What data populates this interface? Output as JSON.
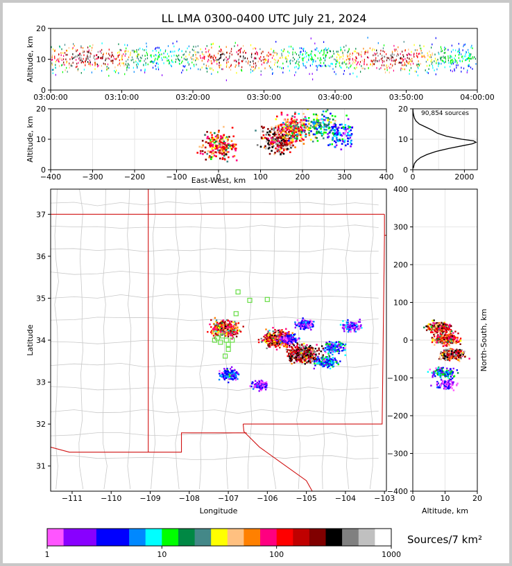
{
  "chart_data": [
    {
      "panel": "time-altitude",
      "type": "scatter",
      "title": "LL LMA 0300-0400 UTC July 21, 2024",
      "ylabel": "Altitude, km",
      "xlim": [
        "03:00:00",
        "04:00:00"
      ],
      "ylim": [
        0,
        20
      ],
      "x_ticks": [
        "03:00:00",
        "03:10:00",
        "03:20:00",
        "03:30:00",
        "03:40:00",
        "03:50:00",
        "04:00:00"
      ],
      "y_ticks": [
        "0",
        "10",
        "20"
      ]
    },
    {
      "panel": "east-west-altitude",
      "type": "heatmap",
      "xlabel": "East-West, km",
      "ylabel": "Altitude, km",
      "xlim": [
        -400,
        400
      ],
      "ylim": [
        0,
        20
      ],
      "x_ticks": [
        "−400",
        "−300",
        "−200",
        "−100",
        "0",
        "100",
        "200",
        "300",
        "400"
      ],
      "y_ticks": [
        "0",
        "10",
        "20"
      ],
      "clusters_xz": [
        {
          "x": 0,
          "z": 8,
          "weight": 0.85
        },
        {
          "x": 145,
          "z": 10,
          "weight": 1.0
        },
        {
          "x": 180,
          "z": 14,
          "weight": 0.8
        },
        {
          "x": 240,
          "z": 15,
          "weight": 0.55
        },
        {
          "x": 290,
          "z": 12,
          "weight": 0.4
        }
      ]
    },
    {
      "panel": "altitude-histogram",
      "type": "line",
      "annotation": "90,854 sources",
      "xlim": [
        0,
        2500
      ],
      "ylim": [
        0,
        20
      ],
      "x_ticks": [
        "0",
        "2000"
      ],
      "y_ticks": [
        "0",
        "10",
        "20"
      ],
      "profile": [
        {
          "z": 0.5,
          "n": 20
        },
        {
          "z": 2,
          "n": 60
        },
        {
          "z": 3,
          "n": 150
        },
        {
          "z": 4,
          "n": 300
        },
        {
          "z": 5,
          "n": 550
        },
        {
          "z": 6,
          "n": 900
        },
        {
          "z": 7,
          "n": 1400
        },
        {
          "z": 8,
          "n": 2000
        },
        {
          "z": 8.5,
          "n": 2300
        },
        {
          "z": 9,
          "n": 2450
        },
        {
          "z": 9.5,
          "n": 2350
        },
        {
          "z": 10,
          "n": 1900
        },
        {
          "z": 11,
          "n": 1300
        },
        {
          "z": 12,
          "n": 950
        },
        {
          "z": 13,
          "n": 750
        },
        {
          "z": 14,
          "n": 500
        },
        {
          "z": 15,
          "n": 250
        },
        {
          "z": 16,
          "n": 120
        },
        {
          "z": 17,
          "n": 60
        },
        {
          "z": 18,
          "n": 30
        },
        {
          "z": 19,
          "n": 10
        },
        {
          "z": 20,
          "n": 2
        }
      ]
    },
    {
      "panel": "plan-map",
      "type": "heatmap",
      "xlabel": "Longitude",
      "ylabel": "Latitude",
      "xlim": [
        -111.55,
        -102.95
      ],
      "ylim": [
        30.4,
        37.6
      ],
      "x_ticks": [
        "−111",
        "−110",
        "−109",
        "−108",
        "−107",
        "−106",
        "−105",
        "−104",
        "−103"
      ],
      "y_ticks": [
        "31",
        "32",
        "33",
        "34",
        "35",
        "36",
        "37"
      ],
      "clusters": [
        {
          "lon": -107.1,
          "lat": 34.3,
          "weight": 0.85
        },
        {
          "lon": -105.75,
          "lat": 34.05,
          "weight": 0.9
        },
        {
          "lon": -105.1,
          "lat": 33.7,
          "weight": 1.0
        },
        {
          "lon": -104.5,
          "lat": 33.5,
          "weight": 0.45
        },
        {
          "lon": -107.0,
          "lat": 33.2,
          "weight": 0.35
        },
        {
          "lon": -106.2,
          "lat": 32.95,
          "weight": 0.25
        },
        {
          "lon": -104.3,
          "lat": 33.85,
          "weight": 0.4
        },
        {
          "lon": -103.85,
          "lat": 34.35,
          "weight": 0.3
        },
        {
          "lon": -105.05,
          "lat": 34.4,
          "weight": 0.3
        },
        {
          "lon": -105.45,
          "lat": 34.05,
          "weight": 0.3
        }
      ],
      "stations": [
        {
          "lon": -106.75,
          "lat": 35.15
        },
        {
          "lon": -106.45,
          "lat": 34.95
        },
        {
          "lon": -106.0,
          "lat": 34.97
        },
        {
          "lon": -106.8,
          "lat": 34.63
        },
        {
          "lon": -107.35,
          "lat": 34.0
        },
        {
          "lon": -107.2,
          "lat": 33.95
        },
        {
          "lon": -107.05,
          "lat": 34.0
        },
        {
          "lon": -106.9,
          "lat": 34.0
        },
        {
          "lon": -107.15,
          "lat": 34.1
        },
        {
          "lon": -107.0,
          "lat": 33.9
        },
        {
          "lon": -107.0,
          "lat": 33.78
        },
        {
          "lon": -107.08,
          "lat": 33.62
        },
        {
          "lon": -107.28,
          "lat": 34.05
        }
      ]
    },
    {
      "panel": "altitude-north-south",
      "type": "heatmap",
      "xlabel": "Altitude, km",
      "ylabel": "North-South, km",
      "xlim": [
        0,
        20
      ],
      "ylim": [
        -400,
        400
      ],
      "x_ticks": [
        "0",
        "10",
        "20"
      ],
      "y_ticks": [
        "−400",
        "−300",
        "−200",
        "−100",
        "0",
        "100",
        "200",
        "300",
        "400"
      ],
      "clusters_zy": [
        {
          "z": 8,
          "y": 35,
          "weight": 0.9
        },
        {
          "z": 10,
          "y": 5,
          "weight": 0.85
        },
        {
          "z": 12,
          "y": -35,
          "weight": 1.0
        },
        {
          "z": 9,
          "y": -85,
          "weight": 0.45
        },
        {
          "z": 10,
          "y": -115,
          "weight": 0.25
        }
      ]
    },
    {
      "panel": "colorbar",
      "type": "colorbar",
      "label": "Sources/7 km²",
      "scale": "log",
      "range": [
        1,
        1000
      ],
      "ticks": [
        "1",
        "10",
        "100",
        "1000"
      ],
      "colors": [
        "#ff55ff",
        "#8800ff",
        "#8800ff",
        "#0000ff",
        "#0000ff",
        "#0088ff",
        "#00ffff",
        "#00ff00",
        "#008844",
        "#448888",
        "#ffff00",
        "#ffc080",
        "#ff8000",
        "#ff0080",
        "#ff0000",
        "#c00000",
        "#800000",
        "#000000",
        "#808080",
        "#c0c0c0",
        "#ffffff"
      ]
    }
  ]
}
